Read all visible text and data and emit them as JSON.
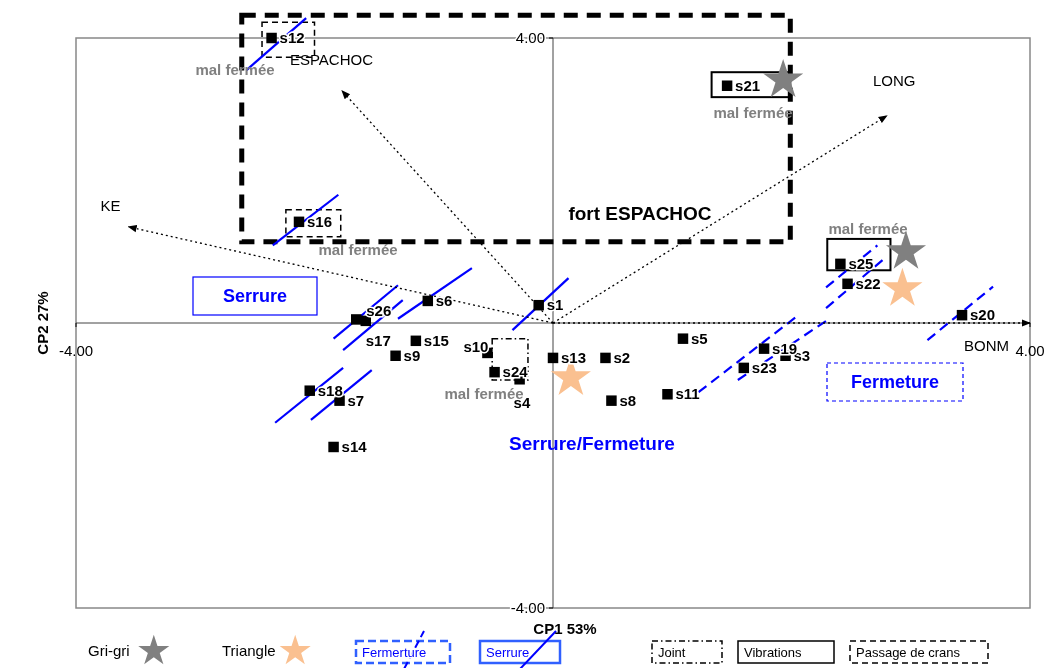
{
  "chart_data": {
    "type": "scatter",
    "xlabel": "CP1 53%",
    "ylabel": "CP2 27%",
    "xlim": [
      -4,
      4
    ],
    "ylim": [
      -4,
      4
    ],
    "xticks": [
      {
        "value": -4,
        "label": "-4.00"
      },
      {
        "value": 4,
        "label": "4.00"
      }
    ],
    "yticks": [
      {
        "value": -4,
        "label": "-4.00"
      },
      {
        "value": 4,
        "label": "4.00"
      }
    ],
    "legend": "bottom",
    "series": [
      {
        "marker": "square",
        "color": "#000000",
        "x": [
          -0.12,
          0.44,
          1.95,
          -0.28,
          1.09,
          -1.05,
          -1.79,
          0.49,
          -1.32,
          -0.55,
          0.96,
          -2.36,
          0.0,
          -1.84,
          -1.15,
          -2.13,
          -1.57,
          -2.04,
          1.77,
          3.43,
          1.46,
          2.47,
          1.6,
          -0.49,
          2.41,
          -1.65
        ],
        "values": [
          0.25,
          -0.49,
          -0.46,
          -0.79,
          -0.22,
          0.31,
          -1.09,
          -1.09,
          -0.46,
          -0.42,
          -1.0,
          4.0,
          -0.49,
          -1.74,
          -0.25,
          1.42,
          0.03,
          -0.95,
          -0.36,
          0.11,
          3.33,
          0.55,
          -0.63,
          -0.69,
          0.83,
          0.05
        ],
        "value_labels": [
          "s1",
          "s2",
          "s3",
          "s4",
          "s5",
          "s6",
          "s7",
          "s8",
          "s9",
          "s10",
          "s11",
          "s12",
          "s13",
          "s14",
          "s15",
          "s16",
          "s17",
          "s18",
          "s19",
          "s20",
          "s21",
          "s22",
          "s23",
          "s24",
          "s25",
          "s26"
        ]
      },
      {
        "name": "Gri-gri",
        "marker": "star",
        "color": "#808080",
        "x": [
          1.93,
          2.96
        ],
        "values": [
          3.41,
          1.0
        ]
      },
      {
        "name": "Triangle",
        "marker": "star",
        "color": "#fac090",
        "x": [
          0.15,
          2.93
        ],
        "values": [
          -0.77,
          0.48
        ]
      },
      {
        "type": "line",
        "name": "KE",
        "line_style": "dotted",
        "color": "#000000",
        "x": [
          0,
          -3.56
        ],
        "values": [
          0,
          1.35
        ]
      },
      {
        "type": "line",
        "name": "ESPACHOC",
        "line_style": "dotted",
        "color": "#000000",
        "x": [
          0,
          -1.77
        ],
        "values": [
          0,
          3.26
        ]
      },
      {
        "type": "line",
        "name": "LONG",
        "line_style": "dotted",
        "color": "#000000",
        "x": [
          0,
          2.8
        ],
        "values": [
          0,
          2.91
        ]
      },
      {
        "type": "line",
        "name": "BONM",
        "line_style": "dotted",
        "color": "#000000",
        "x": [
          0,
          4.0
        ],
        "values": [
          0,
          0
        ]
      }
    ],
    "annotations": [
      "mal fermée",
      "mal fermée",
      "mal fermée",
      "mal fermée",
      "mal fermée",
      "fort ESPACHOC",
      "Serrure",
      "Fermeture",
      "Serrure/Fermeture",
      "Fermerture",
      "Serrure",
      "Joint",
      "Vibrations",
      "Passage de crans"
    ]
  }
}
